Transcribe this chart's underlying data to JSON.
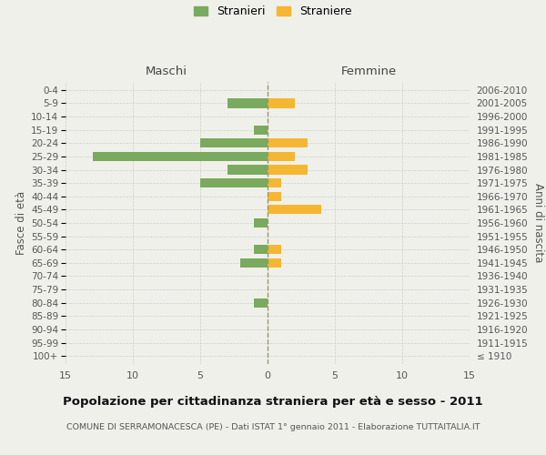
{
  "age_groups": [
    "100+",
    "95-99",
    "90-94",
    "85-89",
    "80-84",
    "75-79",
    "70-74",
    "65-69",
    "60-64",
    "55-59",
    "50-54",
    "45-49",
    "40-44",
    "35-39",
    "30-34",
    "25-29",
    "20-24",
    "15-19",
    "10-14",
    "5-9",
    "0-4"
  ],
  "birth_years": [
    "≤ 1910",
    "1911-1915",
    "1916-1920",
    "1921-1925",
    "1926-1930",
    "1931-1935",
    "1936-1940",
    "1941-1945",
    "1946-1950",
    "1951-1955",
    "1956-1960",
    "1961-1965",
    "1966-1970",
    "1971-1975",
    "1976-1980",
    "1981-1985",
    "1986-1990",
    "1991-1995",
    "1996-2000",
    "2001-2005",
    "2006-2010"
  ],
  "maschi": [
    0,
    0,
    0,
    0,
    -1,
    0,
    0,
    -2,
    -1,
    0,
    -1,
    0,
    0,
    -5,
    -3,
    -13,
    -5,
    -1,
    0,
    -3,
    0
  ],
  "femmine": [
    0,
    0,
    0,
    0,
    0,
    0,
    0,
    1,
    1,
    0,
    0,
    4,
    1,
    1,
    3,
    2,
    3,
    0,
    0,
    2,
    0
  ],
  "color_maschi": "#7aaa5e",
  "color_femmine": "#f5b731",
  "xlim": 15,
  "title": "Popolazione per cittadinanza straniera per età e sesso - 2011",
  "subtitle": "COMUNE DI SERRAMONACESCA (PE) - Dati ISTAT 1° gennaio 2011 - Elaborazione TUTTAITALIA.IT",
  "ylabel_left": "Fasce di età",
  "ylabel_right": "Anni di nascita",
  "legend_maschi": "Stranieri",
  "legend_femmine": "Straniere",
  "label_maschi": "Maschi",
  "label_femmine": "Femmine",
  "background_color": "#f0f0eb",
  "bar_height": 0.7
}
